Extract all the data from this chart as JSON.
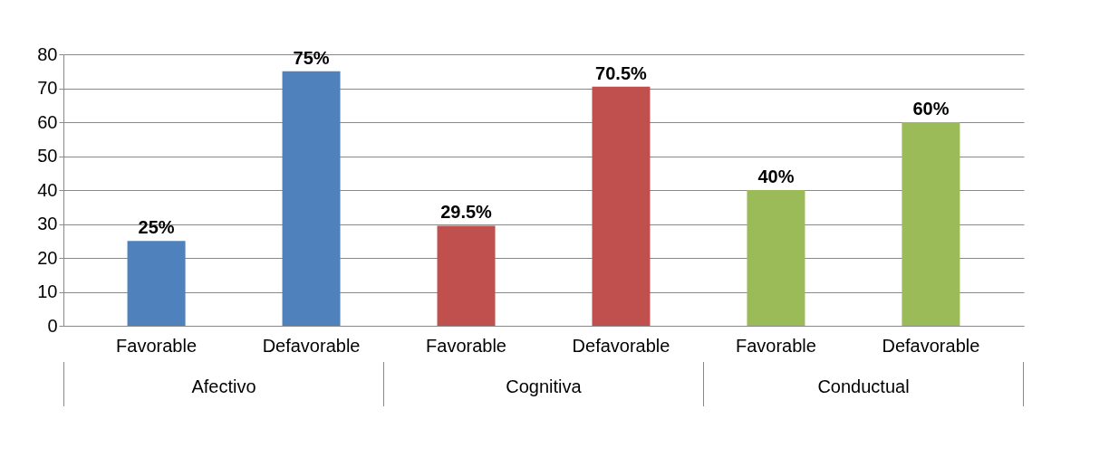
{
  "chart_data": {
    "type": "bar",
    "categories": [
      "Favorable",
      "Defavorable",
      "Favorable",
      "Defavorable",
      "Favorable",
      "Defavorable"
    ],
    "values": [
      25,
      75,
      29.5,
      70.5,
      40,
      60
    ],
    "colors": [
      "#4f81bd",
      "#4f81bd",
      "#c0504d",
      "#c0504d",
      "#9bbb59",
      "#9bbb59"
    ],
    "value_labels": [
      "25%",
      "75%",
      "29.5%",
      "70.5%",
      "40%",
      "60%"
    ],
    "annotations": [
      "Afectivo",
      "Cognitiva",
      "Conductual"
    ],
    "ylim": [
      0,
      80
    ],
    "yticks": [
      0,
      10,
      20,
      30,
      40,
      50,
      60,
      70,
      80
    ],
    "grid": "y"
  }
}
